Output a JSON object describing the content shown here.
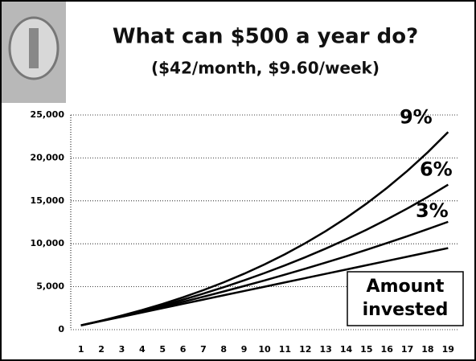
{
  "chart_data": {
    "type": "line",
    "title": "What can $500 a year do?",
    "subtitle": "($42/month, $9.60/week)",
    "categories": [
      "1",
      "2",
      "3",
      "4",
      "5",
      "6",
      "7",
      "8",
      "9",
      "10",
      "11",
      "12",
      "13",
      "14",
      "15",
      "16",
      "17",
      "18",
      "19"
    ],
    "series": [
      {
        "name": "9%",
        "color": "#000000",
        "values": [
          500,
          1045,
          1639,
          2287,
          2992,
          3762,
          4600,
          5514,
          6511,
          7597,
          8782,
          10071,
          11477,
          13010,
          14681,
          16502,
          18487,
          20651,
          23009
        ]
      },
      {
        "name": "6%",
        "color": "#000000",
        "values": [
          500,
          1030,
          1592,
          2187,
          2818,
          3488,
          4197,
          4949,
          5746,
          6590,
          7486,
          8435,
          9441,
          10508,
          11638,
          12837,
          14107,
          15453,
          16880
        ]
      },
      {
        "name": "3%",
        "color": "#000000",
        "values": [
          500,
          1015,
          1545,
          2092,
          2655,
          3235,
          3831,
          4446,
          5079,
          5732,
          6404,
          7096,
          7809,
          8543,
          9300,
          10078,
          10880,
          11707,
          12558
        ]
      },
      {
        "name": "Amount invested",
        "color": "#000000",
        "values": [
          500,
          1000,
          1500,
          2000,
          2500,
          3000,
          3500,
          4000,
          4500,
          5000,
          5500,
          6000,
          6500,
          7000,
          7500,
          8000,
          8500,
          9000,
          9500
        ]
      }
    ],
    "ylim": [
      0,
      25000
    ],
    "yticks": [
      {
        "value": 0,
        "label": "0"
      },
      {
        "value": 5000,
        "label": "5,000"
      },
      {
        "value": 10000,
        "label": "10,000"
      },
      {
        "value": 15000,
        "label": "15,000"
      },
      {
        "value": 20000,
        "label": "20,000"
      },
      {
        "value": 25000,
        "label": "25,000"
      }
    ],
    "grid": true
  }
}
